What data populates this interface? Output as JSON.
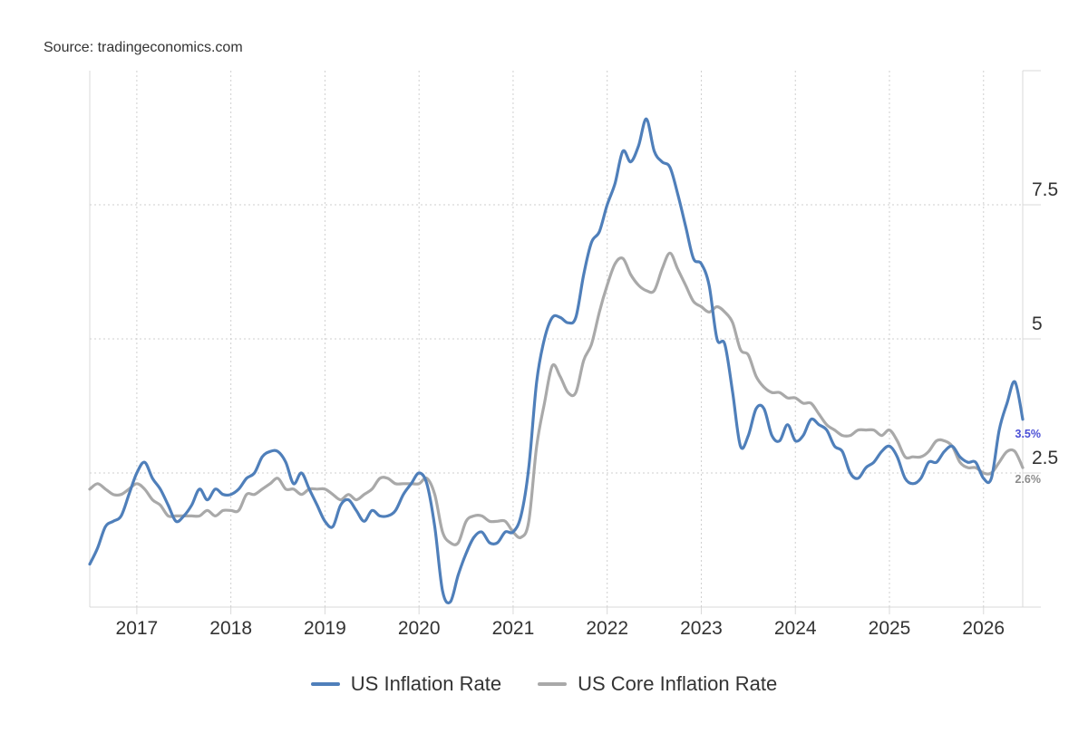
{
  "source_label": "Source: tradingeconomics.com",
  "chart_data": {
    "type": "line",
    "title": "",
    "xlabel": "",
    "ylabel": "",
    "x_tick_labels": [
      "2017",
      "2018",
      "2019",
      "2020",
      "2021",
      "2022",
      "2023",
      "2024",
      "2025",
      "2026"
    ],
    "y_tick_labels": [
      "2.5",
      "5",
      "7.5"
    ],
    "y_ticks": [
      2.5,
      5,
      7.5
    ],
    "ylim": [
      0,
      10
    ],
    "x_domain": [
      "2016-07",
      "2026-06"
    ],
    "grid": true,
    "legend_position": "bottom",
    "series": [
      {
        "name": "US Inflation Rate",
        "color": "#4f7fba",
        "end_label": "3.5%",
        "x": [
          "2016-07",
          "2016-08",
          "2016-09",
          "2016-10",
          "2016-11",
          "2016-12",
          "2017-01",
          "2017-02",
          "2017-03",
          "2017-04",
          "2017-05",
          "2017-06",
          "2017-07",
          "2017-08",
          "2017-09",
          "2017-10",
          "2017-11",
          "2017-12",
          "2018-01",
          "2018-02",
          "2018-03",
          "2018-04",
          "2018-05",
          "2018-06",
          "2018-07",
          "2018-08",
          "2018-09",
          "2018-10",
          "2018-11",
          "2018-12",
          "2019-01",
          "2019-02",
          "2019-03",
          "2019-04",
          "2019-05",
          "2019-06",
          "2019-07",
          "2019-08",
          "2019-09",
          "2019-10",
          "2019-11",
          "2019-12",
          "2020-01",
          "2020-02",
          "2020-03",
          "2020-04",
          "2020-05",
          "2020-06",
          "2020-07",
          "2020-08",
          "2020-09",
          "2020-10",
          "2020-11",
          "2020-12",
          "2021-01",
          "2021-02",
          "2021-03",
          "2021-04",
          "2021-05",
          "2021-06",
          "2021-07",
          "2021-08",
          "2021-09",
          "2021-10",
          "2021-11",
          "2021-12",
          "2022-01",
          "2022-02",
          "2022-03",
          "2022-04",
          "2022-05",
          "2022-06",
          "2022-07",
          "2022-08",
          "2022-09",
          "2022-10",
          "2022-11",
          "2022-12",
          "2023-01",
          "2023-02",
          "2023-03",
          "2023-04",
          "2023-05",
          "2023-06",
          "2023-07",
          "2023-08",
          "2023-09",
          "2023-10",
          "2023-11",
          "2023-12",
          "2024-01",
          "2024-02",
          "2024-03",
          "2024-04",
          "2024-05",
          "2024-06",
          "2024-07",
          "2024-08",
          "2024-09",
          "2024-10",
          "2024-11",
          "2024-12",
          "2025-01",
          "2025-02",
          "2025-03",
          "2025-04",
          "2025-05",
          "2025-06",
          "2025-07",
          "2025-08",
          "2025-09",
          "2025-10",
          "2025-11",
          "2025-12",
          "2026-01",
          "2026-02",
          "2026-03",
          "2026-04",
          "2026-05",
          "2026-06"
        ],
        "values": [
          0.8,
          1.1,
          1.5,
          1.6,
          1.7,
          2.1,
          2.5,
          2.7,
          2.4,
          2.2,
          1.9,
          1.6,
          1.7,
          1.9,
          2.2,
          2.0,
          2.2,
          2.1,
          2.1,
          2.2,
          2.4,
          2.5,
          2.8,
          2.9,
          2.9,
          2.7,
          2.3,
          2.5,
          2.2,
          1.9,
          1.6,
          1.5,
          1.9,
          2.0,
          1.8,
          1.6,
          1.8,
          1.7,
          1.7,
          1.8,
          2.1,
          2.3,
          2.5,
          2.3,
          1.5,
          0.3,
          0.1,
          0.6,
          1.0,
          1.3,
          1.4,
          1.2,
          1.2,
          1.4,
          1.4,
          1.7,
          2.6,
          4.2,
          5.0,
          5.4,
          5.4,
          5.3,
          5.4,
          6.2,
          6.8,
          7.0,
          7.5,
          7.9,
          8.5,
          8.3,
          8.6,
          9.1,
          8.5,
          8.3,
          8.2,
          7.7,
          7.1,
          6.5,
          6.4,
          6.0,
          5.0,
          4.9,
          4.0,
          3.0,
          3.2,
          3.7,
          3.7,
          3.2,
          3.1,
          3.4,
          3.1,
          3.2,
          3.5,
          3.4,
          3.3,
          3.0,
          2.9,
          2.5,
          2.4,
          2.6,
          2.7,
          2.9,
          3.0,
          2.8,
          2.4,
          2.3,
          2.4,
          2.7,
          2.7,
          2.9,
          3.0,
          2.8,
          2.7,
          2.7,
          2.4,
          2.4,
          3.3,
          3.8,
          4.2,
          3.5
        ]
      },
      {
        "name": "US Core Inflation Rate",
        "color": "#a9a9a9",
        "end_label": "2.6%",
        "x": [
          "2016-07",
          "2016-08",
          "2016-09",
          "2016-10",
          "2016-11",
          "2016-12",
          "2017-01",
          "2017-02",
          "2017-03",
          "2017-04",
          "2017-05",
          "2017-06",
          "2017-07",
          "2017-08",
          "2017-09",
          "2017-10",
          "2017-11",
          "2017-12",
          "2018-01",
          "2018-02",
          "2018-03",
          "2018-04",
          "2018-05",
          "2018-06",
          "2018-07",
          "2018-08",
          "2018-09",
          "2018-10",
          "2018-11",
          "2018-12",
          "2019-01",
          "2019-02",
          "2019-03",
          "2019-04",
          "2019-05",
          "2019-06",
          "2019-07",
          "2019-08",
          "2019-09",
          "2019-10",
          "2019-11",
          "2019-12",
          "2020-01",
          "2020-02",
          "2020-03",
          "2020-04",
          "2020-05",
          "2020-06",
          "2020-07",
          "2020-08",
          "2020-09",
          "2020-10",
          "2020-11",
          "2020-12",
          "2021-01",
          "2021-02",
          "2021-03",
          "2021-04",
          "2021-05",
          "2021-06",
          "2021-07",
          "2021-08",
          "2021-09",
          "2021-10",
          "2021-11",
          "2021-12",
          "2022-01",
          "2022-02",
          "2022-03",
          "2022-04",
          "2022-05",
          "2022-06",
          "2022-07",
          "2022-08",
          "2022-09",
          "2022-10",
          "2022-11",
          "2022-12",
          "2023-01",
          "2023-02",
          "2023-03",
          "2023-04",
          "2023-05",
          "2023-06",
          "2023-07",
          "2023-08",
          "2023-09",
          "2023-10",
          "2023-11",
          "2023-12",
          "2024-01",
          "2024-02",
          "2024-03",
          "2024-04",
          "2024-05",
          "2024-06",
          "2024-07",
          "2024-08",
          "2024-09",
          "2024-10",
          "2024-11",
          "2024-12",
          "2025-01",
          "2025-02",
          "2025-03",
          "2025-04",
          "2025-05",
          "2025-06",
          "2025-07",
          "2025-08",
          "2025-09",
          "2025-10",
          "2025-11",
          "2025-12",
          "2026-01",
          "2026-02",
          "2026-03",
          "2026-04",
          "2026-05",
          "2026-06"
        ],
        "values": [
          2.2,
          2.3,
          2.2,
          2.1,
          2.1,
          2.2,
          2.3,
          2.2,
          2.0,
          1.9,
          1.7,
          1.7,
          1.7,
          1.7,
          1.7,
          1.8,
          1.7,
          1.8,
          1.8,
          1.8,
          2.1,
          2.1,
          2.2,
          2.3,
          2.4,
          2.2,
          2.2,
          2.1,
          2.2,
          2.2,
          2.2,
          2.1,
          2.0,
          2.1,
          2.0,
          2.1,
          2.2,
          2.4,
          2.4,
          2.3,
          2.3,
          2.3,
          2.3,
          2.4,
          2.1,
          1.4,
          1.2,
          1.2,
          1.6,
          1.7,
          1.7,
          1.6,
          1.6,
          1.6,
          1.4,
          1.3,
          1.6,
          3.0,
          3.8,
          4.5,
          4.3,
          4.0,
          4.0,
          4.6,
          4.9,
          5.5,
          6.0,
          6.4,
          6.5,
          6.2,
          6.0,
          5.9,
          5.9,
          6.3,
          6.6,
          6.3,
          6.0,
          5.7,
          5.6,
          5.5,
          5.6,
          5.5,
          5.3,
          4.8,
          4.7,
          4.3,
          4.1,
          4.0,
          4.0,
          3.9,
          3.9,
          3.8,
          3.8,
          3.6,
          3.4,
          3.3,
          3.2,
          3.2,
          3.3,
          3.3,
          3.3,
          3.2,
          3.3,
          3.1,
          2.8,
          2.8,
          2.8,
          2.9,
          3.1,
          3.1,
          3.0,
          2.7,
          2.6,
          2.6,
          2.5,
          2.5,
          2.7,
          2.9,
          2.9,
          2.6
        ]
      }
    ]
  }
}
